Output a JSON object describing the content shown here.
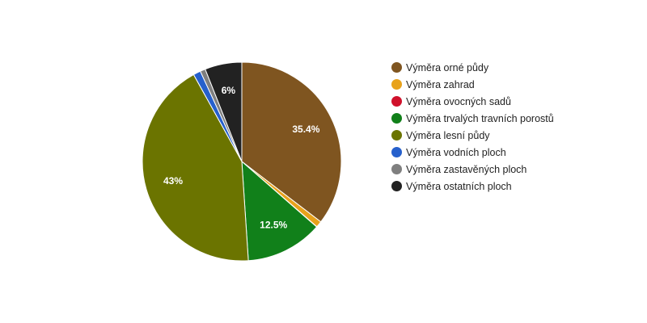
{
  "chart_data": {
    "type": "pie",
    "series": [
      {
        "name": "Výměra orné půdy",
        "value": 35.4,
        "label": "35.4%",
        "color": "#7f5520"
      },
      {
        "name": "Výměra zahrad",
        "value": 1.0,
        "label": "",
        "color": "#e8a21b"
      },
      {
        "name": "Výměra ovocných sadů",
        "value": 0.05,
        "label": "",
        "color": "#d0112b"
      },
      {
        "name": "Výměra trvalých travních porostů",
        "value": 12.5,
        "label": "12.5%",
        "color": "#11801a"
      },
      {
        "name": "Výměra lesní půdy",
        "value": 43.0,
        "label": "43%",
        "color": "#6b7400"
      },
      {
        "name": "Výměra vodních ploch",
        "value": 1.2,
        "label": "",
        "color": "#2660cc"
      },
      {
        "name": "Výměra zastavěných ploch",
        "value": 0.85,
        "label": "",
        "color": "#7f7f7f"
      },
      {
        "name": "Výměra ostatních ploch",
        "value": 6.0,
        "label": "6%",
        "color": "#222222"
      }
    ],
    "start": "top",
    "direction": "clockwise",
    "legend_position": "right"
  }
}
